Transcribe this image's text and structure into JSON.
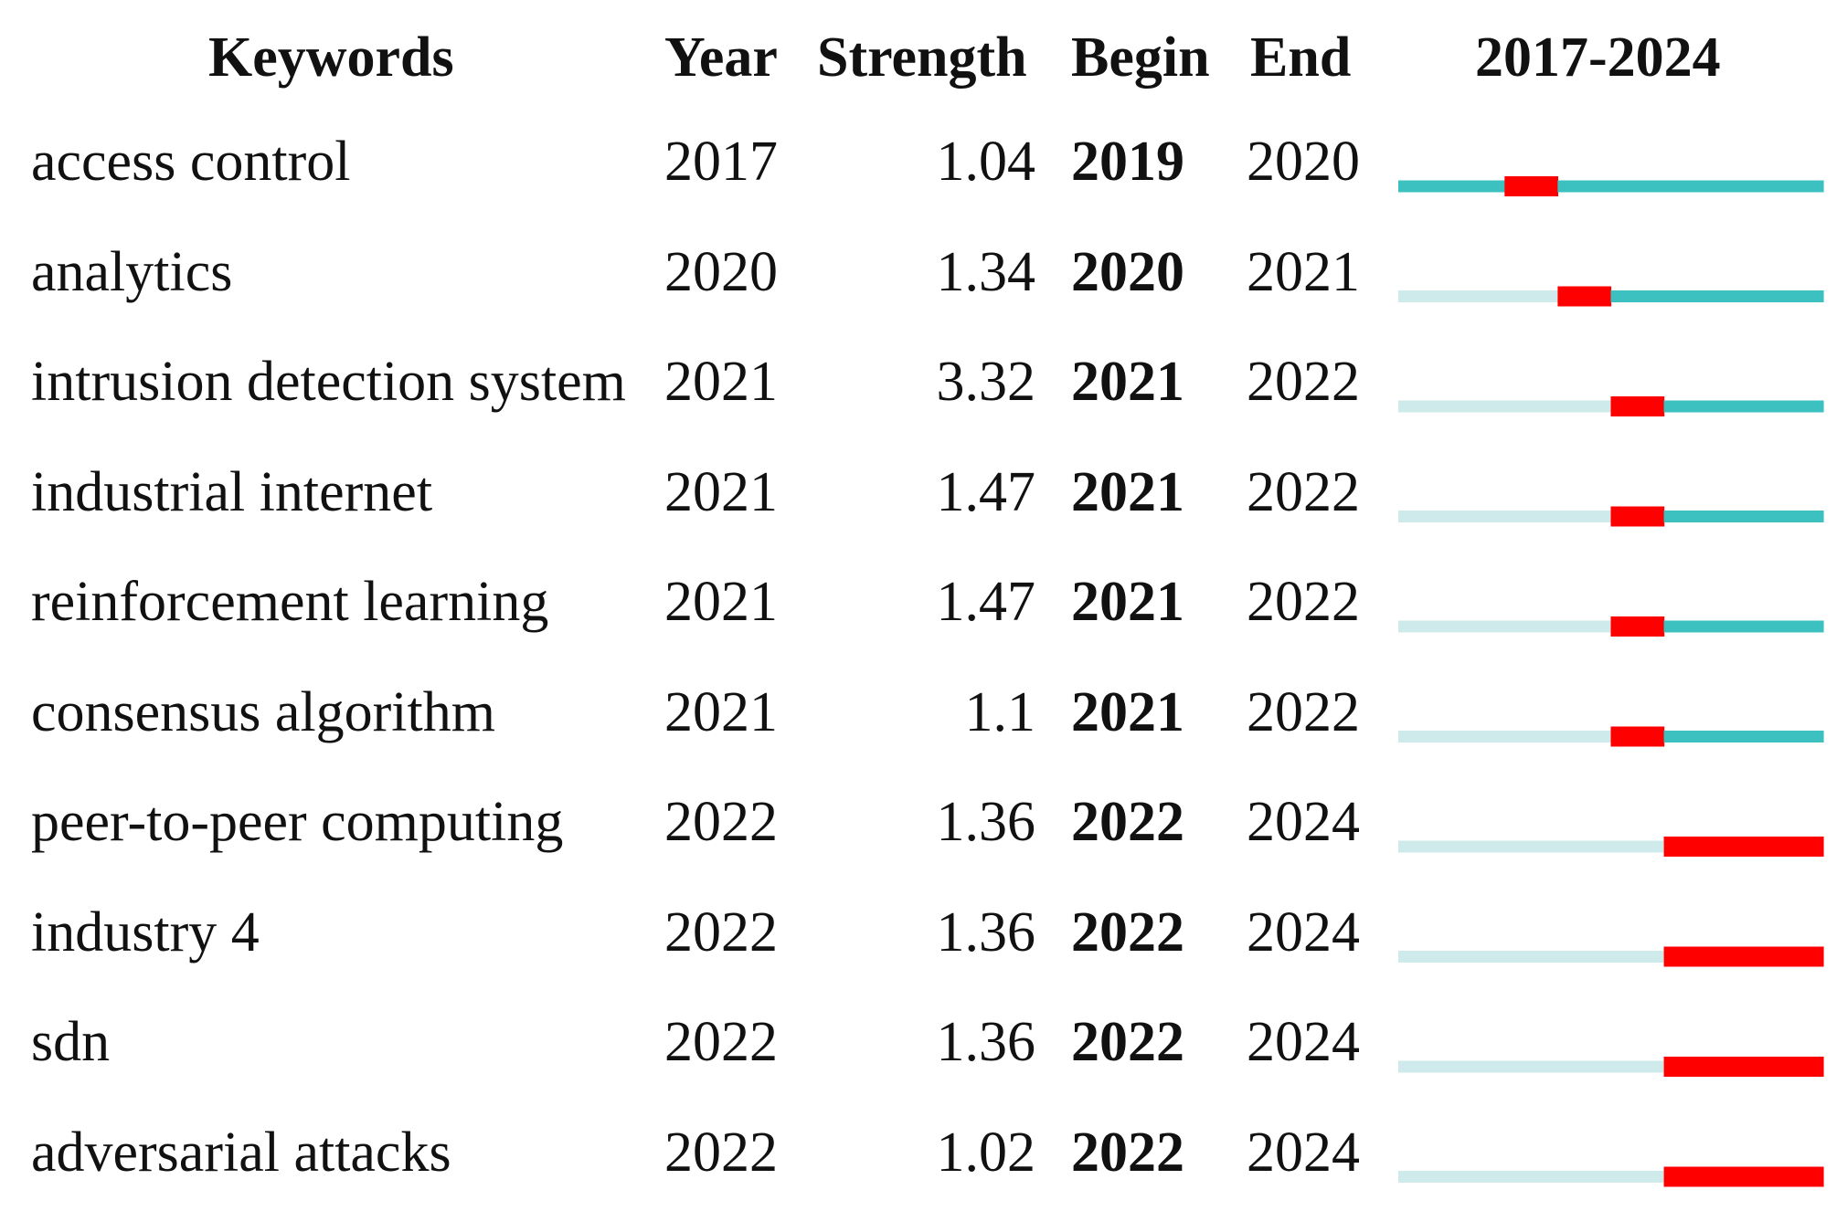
{
  "headers": {
    "keywords": "Keywords",
    "year": "Year",
    "strength": "Strength",
    "begin": "Begin",
    "end": "End",
    "range": "2017-2024"
  },
  "chart_data": {
    "type": "table",
    "title": "",
    "timeline_start": 2017,
    "timeline_end": 2024,
    "colors": {
      "burst": "#ff0000",
      "active": "#3cc0c0",
      "inactive": "#cfeaea"
    },
    "rows": [
      {
        "keyword": "access control",
        "year": "2017",
        "strength": "1.04",
        "begin": "2019",
        "end": "2020"
      },
      {
        "keyword": "analytics",
        "year": "2020",
        "strength": "1.34",
        "begin": "2020",
        "end": "2021"
      },
      {
        "keyword": "intrusion detection system",
        "year": "2021",
        "strength": "3.32",
        "begin": "2021",
        "end": "2022"
      },
      {
        "keyword": "industrial internet",
        "year": "2021",
        "strength": "1.47",
        "begin": "2021",
        "end": "2022"
      },
      {
        "keyword": "reinforcement learning",
        "year": "2021",
        "strength": "1.47",
        "begin": "2021",
        "end": "2022"
      },
      {
        "keyword": "consensus algorithm",
        "year": "2021",
        "strength": "1.1",
        "begin": "2021",
        "end": "2022"
      },
      {
        "keyword": "peer-to-peer computing",
        "year": "2022",
        "strength": "1.36",
        "begin": "2022",
        "end": "2024"
      },
      {
        "keyword": "industry 4",
        "year": "2022",
        "strength": "1.36",
        "begin": "2022",
        "end": "2024"
      },
      {
        "keyword": "sdn",
        "year": "2022",
        "strength": "1.36",
        "begin": "2022",
        "end": "2024"
      },
      {
        "keyword": "adversarial attacks",
        "year": "2022",
        "strength": "1.02",
        "begin": "2022",
        "end": "2024"
      }
    ]
  }
}
